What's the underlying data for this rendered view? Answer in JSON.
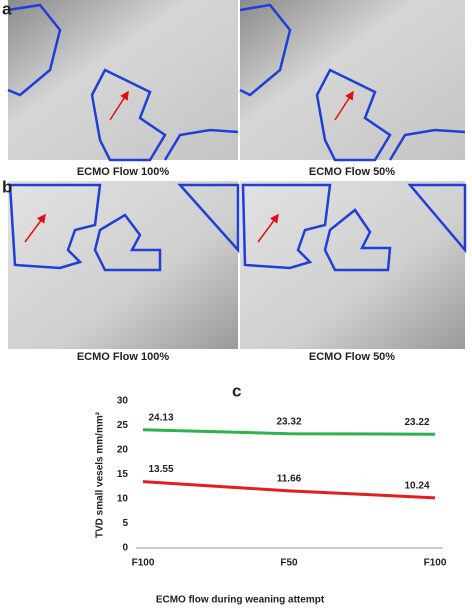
{
  "figure": {
    "panels": [
      {
        "label": "a",
        "captions": [
          "ECMO Flow 100%",
          "ECMO Flow 50%"
        ]
      },
      {
        "label": "b",
        "captions": [
          "ECMO Flow 100%",
          "ECMO Flow 50%"
        ]
      }
    ]
  },
  "chart_data": {
    "type": "line",
    "label": "c",
    "x_label": "ECMO flow during weaning attempt",
    "y_label": "TVD small vesels mm/mm²",
    "categories": [
      "F100",
      "F50",
      "F100"
    ],
    "series": [
      {
        "color": "#2eb34a",
        "values": [
          24.13,
          23.32,
          23.22
        ]
      },
      {
        "color": "#e31e1e",
        "values": [
          13.55,
          11.66,
          10.24
        ]
      }
    ],
    "ylim": [
      0,
      30
    ],
    "yticks": [
      0,
      5,
      10,
      15,
      20,
      25,
      30
    ],
    "grid": false
  }
}
